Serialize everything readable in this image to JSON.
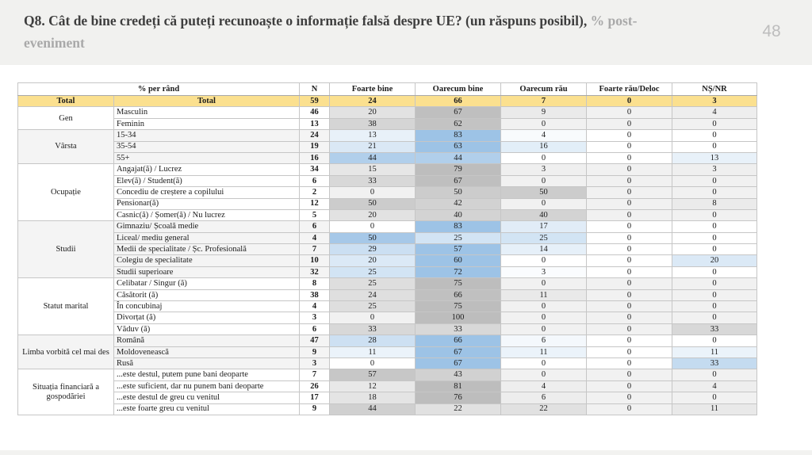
{
  "slide": {
    "title_main": "Q8. Cât de bine credeți că puteți recunoaște o informație falsă despre UE? (un răspuns posibil),",
    "title_suffix_line1": "% post-",
    "title_suffix_line2": "eveniment",
    "page_number": "48"
  },
  "colors": {
    "top_band": "#F1F1EF",
    "title_dark": "#3E3E3E",
    "title_gray": "#A9A9A9",
    "page_number_gray": "#BDBDBD",
    "total_row_bg": "#FBE08F",
    "border_light": "#C6C6C6",
    "border_dark": "#A8A8A8",
    "heat": {
      "gray_floor": "#F1F1F1",
      "gray_full": "#BDBDBD",
      "gray_cap": 70,
      "blue_floor": "#FFFFFF",
      "blue_full": "#9DC3E6",
      "blue_cap": 55
    }
  },
  "table": {
    "header": {
      "row_label": "% per rând",
      "n": "N",
      "responses": [
        "Foarte bine",
        "Oarecum bine",
        "Oarecum rău",
        "Foarte rău/Deloc",
        "NȘ/NR"
      ]
    },
    "total_row": {
      "group": "Total",
      "label": "Total",
      "n": 59,
      "values": [
        24,
        66,
        7,
        0,
        3
      ]
    },
    "groups": [
      {
        "name": "Gen",
        "tone": "gray",
        "rows": [
          {
            "label": "Masculin",
            "n": 46,
            "values": [
              20,
              67,
              9,
              0,
              4
            ]
          },
          {
            "label": "Feminin",
            "n": 13,
            "values": [
              38,
              62,
              0,
              0,
              0
            ]
          }
        ]
      },
      {
        "name": "Vârsta",
        "tone": "blue",
        "rows": [
          {
            "label": "15-34",
            "n": 24,
            "values": [
              13,
              83,
              4,
              0,
              0
            ]
          },
          {
            "label": "35-54",
            "n": 19,
            "values": [
              21,
              63,
              16,
              0,
              0
            ]
          },
          {
            "label": "55+",
            "n": 16,
            "values": [
              44,
              44,
              0,
              0,
              13
            ]
          }
        ]
      },
      {
        "name": "Ocupație",
        "tone": "gray",
        "rows": [
          {
            "label": "Angajat(ă) / Lucrez",
            "n": 34,
            "values": [
              15,
              79,
              3,
              0,
              3
            ]
          },
          {
            "label": "Elev(ă) / Student(ă)",
            "n": 6,
            "values": [
              33,
              67,
              0,
              0,
              0
            ]
          },
          {
            "label": "Concediu de creștere a copilului",
            "n": 2,
            "values": [
              0,
              50,
              50,
              0,
              0
            ]
          },
          {
            "label": "Pensionar(ă)",
            "n": 12,
            "values": [
              50,
              42,
              0,
              0,
              8
            ]
          },
          {
            "label": "Casnic(ă) / Șomer(ă) / Nu lucrez",
            "n": 5,
            "values": [
              20,
              40,
              40,
              0,
              0
            ]
          }
        ]
      },
      {
        "name": "Studii",
        "tone": "blue",
        "rows": [
          {
            "label": "Gimnaziu/ Școală medie",
            "n": 6,
            "values": [
              0,
              83,
              17,
              0,
              0
            ]
          },
          {
            "label": "Liceal/ mediu general",
            "n": 4,
            "values": [
              50,
              25,
              25,
              0,
              0
            ]
          },
          {
            "label": "Medii de specialitate / Șc. Profesională",
            "n": 7,
            "values": [
              29,
              57,
              14,
              0,
              0
            ]
          },
          {
            "label": "Colegiu de specialitate",
            "n": 10,
            "values": [
              20,
              60,
              0,
              0,
              20
            ]
          },
          {
            "label": "Studii superioare",
            "n": 32,
            "values": [
              25,
              72,
              3,
              0,
              0
            ]
          }
        ]
      },
      {
        "name": "Statut marital",
        "tone": "gray",
        "rows": [
          {
            "label": "Celibatar / Singur (ă)",
            "n": 8,
            "values": [
              25,
              75,
              0,
              0,
              0
            ]
          },
          {
            "label": "Căsătorit (ă)",
            "n": 38,
            "values": [
              24,
              66,
              11,
              0,
              0
            ]
          },
          {
            "label": "În concubinaj",
            "n": 4,
            "values": [
              25,
              75,
              0,
              0,
              0
            ]
          },
          {
            "label": "Divorțat (ă)",
            "n": 3,
            "values": [
              0,
              100,
              0,
              0,
              0
            ]
          },
          {
            "label": "Văduv (ă)",
            "n": 6,
            "values": [
              33,
              33,
              0,
              0,
              33
            ]
          }
        ]
      },
      {
        "name": "Limba vorbită cel mai des",
        "tone": "blue",
        "rows": [
          {
            "label": "Română",
            "n": 47,
            "values": [
              28,
              66,
              6,
              0,
              0
            ]
          },
          {
            "label": "Moldovenească",
            "n": 9,
            "values": [
              11,
              67,
              11,
              0,
              11
            ]
          },
          {
            "label": "Rusă",
            "n": 3,
            "values": [
              0,
              67,
              0,
              0,
              33
            ]
          }
        ]
      },
      {
        "name": "Situația financiară a gospodăriei",
        "tone": "gray",
        "rows": [
          {
            "label": "...este destul, putem pune bani deoparte",
            "n": 7,
            "values": [
              57,
              43,
              0,
              0,
              0
            ]
          },
          {
            "label": "...este suficient, dar nu punem bani deoparte",
            "n": 26,
            "values": [
              12,
              81,
              4,
              0,
              4
            ]
          },
          {
            "label": "...este destul de greu cu venitul",
            "n": 17,
            "values": [
              18,
              76,
              6,
              0,
              0
            ]
          },
          {
            "label": "...este foarte greu cu venitul",
            "n": 9,
            "values": [
              44,
              22,
              22,
              0,
              11
            ]
          }
        ]
      }
    ]
  }
}
